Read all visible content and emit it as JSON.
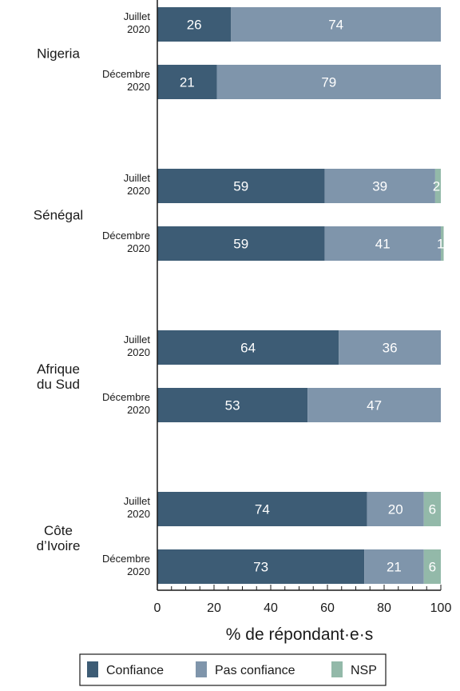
{
  "chart_data": {
    "type": "bar",
    "orientation": "horizontal",
    "stacked": true,
    "xlabel": "% de répondant·e·s",
    "xlim": [
      0,
      100
    ],
    "xticks": [
      0,
      20,
      40,
      60,
      80,
      100
    ],
    "grid": false,
    "legend_position": "bottom",
    "series": [
      {
        "name": "Confiance",
        "color": "#3d5c75"
      },
      {
        "name": "Pas confiance",
        "color": "#7f95ab"
      },
      {
        "name": "NSP",
        "color": "#93b9a9"
      }
    ],
    "groups": [
      {
        "country": [
          "Nigeria"
        ],
        "bars": [
          {
            "period": [
              "Juillet",
              "2020"
            ],
            "values": [
              26,
              74,
              0
            ],
            "labels": [
              "26",
              "74",
              ""
            ]
          },
          {
            "period": [
              "Décembre",
              "2020"
            ],
            "values": [
              21,
              79,
              0
            ],
            "labels": [
              "21",
              "79",
              ""
            ]
          }
        ]
      },
      {
        "country": [
          "Sénégal"
        ],
        "bars": [
          {
            "period": [
              "Juillet",
              "2020"
            ],
            "values": [
              59,
              39,
              2
            ],
            "labels": [
              "59",
              "39",
              "2"
            ]
          },
          {
            "period": [
              "Décembre",
              "2020"
            ],
            "values": [
              59,
              41,
              1
            ],
            "labels": [
              "59",
              "41",
              "1"
            ]
          }
        ]
      },
      {
        "country": [
          "Afrique",
          "du Sud"
        ],
        "bars": [
          {
            "period": [
              "Juillet",
              "2020"
            ],
            "values": [
              64,
              36,
              0
            ],
            "labels": [
              "64",
              "36",
              ""
            ]
          },
          {
            "period": [
              "Décembre",
              "2020"
            ],
            "values": [
              53,
              47,
              0
            ],
            "labels": [
              "53",
              "47",
              ""
            ]
          }
        ]
      },
      {
        "country": [
          "Côte",
          "d’Ivoire"
        ],
        "bars": [
          {
            "period": [
              "Juillet",
              "2020"
            ],
            "values": [
              74,
              20,
              6
            ],
            "labels": [
              "74",
              "20",
              "6"
            ]
          },
          {
            "period": [
              "Décembre",
              "2020"
            ],
            "values": [
              73,
              21,
              6
            ],
            "labels": [
              "73",
              "21",
              "6"
            ]
          }
        ]
      }
    ]
  }
}
